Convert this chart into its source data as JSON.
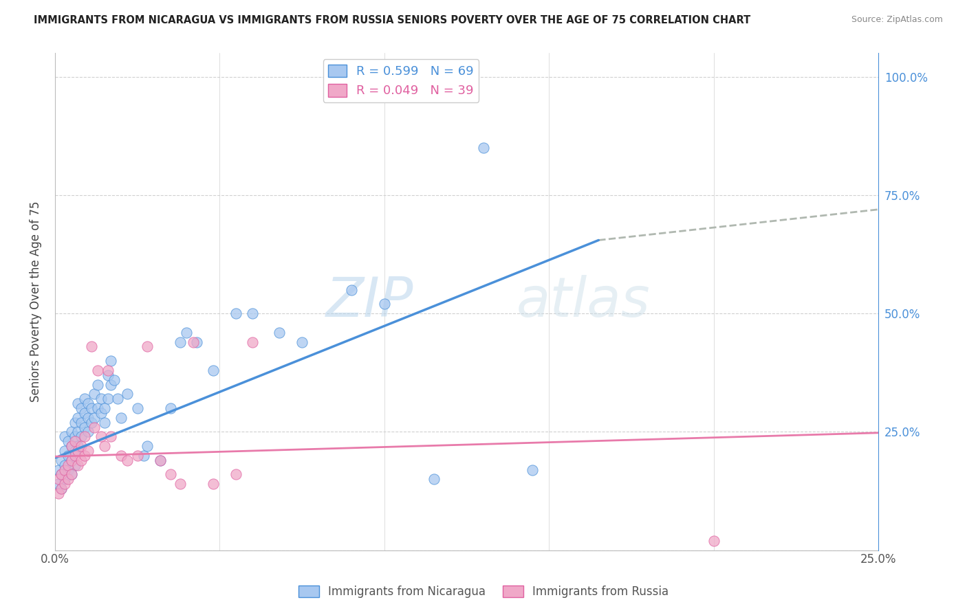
{
  "title": "IMMIGRANTS FROM NICARAGUA VS IMMIGRANTS FROM RUSSIA SENIORS POVERTY OVER THE AGE OF 75 CORRELATION CHART",
  "source": "Source: ZipAtlas.com",
  "ylabel": "Seniors Poverty Over the Age of 75",
  "legend1_label": "R = 0.599   N = 69",
  "legend2_label": "R = 0.049   N = 39",
  "legend1_color": "#a8c8f0",
  "legend2_color": "#f0a8c8",
  "blue_line_color": "#4a90d9",
  "pink_line_color": "#e87aaa",
  "dashed_line_color": "#b0b8b0",
  "watermark_zip": "ZIP",
  "watermark_atlas": "atlas",
  "background_color": "#ffffff",
  "grid_color": "#d0d0d0",
  "xlim": [
    0.0,
    0.25
  ],
  "ylim": [
    0.0,
    1.05
  ],
  "blue_line_x": [
    0.0,
    0.165
  ],
  "blue_line_y": [
    0.195,
    0.655
  ],
  "dashed_line_x": [
    0.165,
    0.25
  ],
  "dashed_line_y": [
    0.655,
    0.72
  ],
  "pink_line_x": [
    0.0,
    0.25
  ],
  "pink_line_y": [
    0.198,
    0.248
  ],
  "nicaragua_x": [
    0.001,
    0.001,
    0.002,
    0.002,
    0.002,
    0.003,
    0.003,
    0.003,
    0.003,
    0.004,
    0.004,
    0.004,
    0.005,
    0.005,
    0.005,
    0.005,
    0.006,
    0.006,
    0.006,
    0.006,
    0.007,
    0.007,
    0.007,
    0.007,
    0.008,
    0.008,
    0.008,
    0.009,
    0.009,
    0.009,
    0.01,
    0.01,
    0.01,
    0.011,
    0.011,
    0.012,
    0.012,
    0.013,
    0.013,
    0.014,
    0.014,
    0.015,
    0.015,
    0.016,
    0.016,
    0.017,
    0.017,
    0.018,
    0.019,
    0.02,
    0.022,
    0.025,
    0.027,
    0.028,
    0.032,
    0.035,
    0.038,
    0.04,
    0.043,
    0.048,
    0.055,
    0.06,
    0.068,
    0.075,
    0.09,
    0.1,
    0.115,
    0.13,
    0.145
  ],
  "nicaragua_y": [
    0.14,
    0.17,
    0.13,
    0.16,
    0.19,
    0.15,
    0.18,
    0.21,
    0.24,
    0.17,
    0.2,
    0.23,
    0.16,
    0.19,
    0.22,
    0.25,
    0.18,
    0.21,
    0.24,
    0.27,
    0.22,
    0.25,
    0.28,
    0.31,
    0.24,
    0.27,
    0.3,
    0.26,
    0.29,
    0.32,
    0.25,
    0.28,
    0.31,
    0.27,
    0.3,
    0.28,
    0.33,
    0.3,
    0.35,
    0.29,
    0.32,
    0.27,
    0.3,
    0.32,
    0.37,
    0.35,
    0.4,
    0.36,
    0.32,
    0.28,
    0.33,
    0.3,
    0.2,
    0.22,
    0.19,
    0.3,
    0.44,
    0.46,
    0.44,
    0.38,
    0.5,
    0.5,
    0.46,
    0.44,
    0.55,
    0.52,
    0.15,
    0.85,
    0.17
  ],
  "russia_x": [
    0.001,
    0.001,
    0.002,
    0.002,
    0.003,
    0.003,
    0.004,
    0.004,
    0.005,
    0.005,
    0.005,
    0.006,
    0.006,
    0.007,
    0.007,
    0.008,
    0.008,
    0.009,
    0.009,
    0.01,
    0.011,
    0.012,
    0.013,
    0.014,
    0.015,
    0.016,
    0.017,
    0.02,
    0.022,
    0.025,
    0.028,
    0.032,
    0.035,
    0.038,
    0.042,
    0.048,
    0.055,
    0.06,
    0.2
  ],
  "russia_y": [
    0.12,
    0.15,
    0.13,
    0.16,
    0.14,
    0.17,
    0.15,
    0.18,
    0.16,
    0.19,
    0.22,
    0.2,
    0.23,
    0.18,
    0.21,
    0.19,
    0.22,
    0.2,
    0.24,
    0.21,
    0.43,
    0.26,
    0.38,
    0.24,
    0.22,
    0.38,
    0.24,
    0.2,
    0.19,
    0.2,
    0.43,
    0.19,
    0.16,
    0.14,
    0.44,
    0.14,
    0.16,
    0.44,
    0.02
  ]
}
